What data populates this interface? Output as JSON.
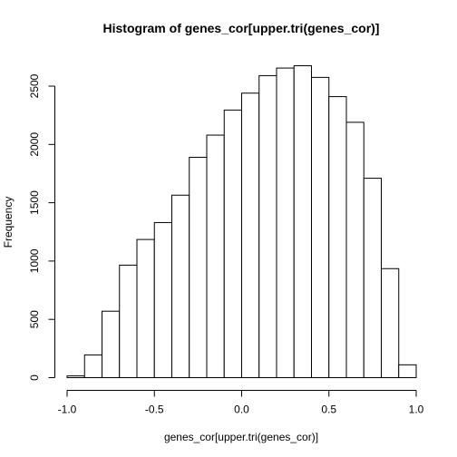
{
  "chart_data": {
    "type": "bar",
    "title": "Histogram of genes_cor[upper.tri(genes_cor)]",
    "xlabel": "genes_cor[upper.tri(genes_cor)]",
    "ylabel": "Frequency",
    "bin_width": 0.1,
    "bins": [
      {
        "start": -1.0,
        "end": -0.9,
        "count": 15
      },
      {
        "start": -0.9,
        "end": -0.8,
        "count": 195
      },
      {
        "start": -0.8,
        "end": -0.7,
        "count": 570
      },
      {
        "start": -0.7,
        "end": -0.6,
        "count": 965
      },
      {
        "start": -0.6,
        "end": -0.5,
        "count": 1185
      },
      {
        "start": -0.5,
        "end": -0.4,
        "count": 1330
      },
      {
        "start": -0.4,
        "end": -0.3,
        "count": 1565
      },
      {
        "start": -0.3,
        "end": -0.2,
        "count": 1890
      },
      {
        "start": -0.2,
        "end": -0.1,
        "count": 2080
      },
      {
        "start": -0.1,
        "end": 0.0,
        "count": 2295
      },
      {
        "start": 0.0,
        "end": 0.1,
        "count": 2440
      },
      {
        "start": 0.1,
        "end": 0.2,
        "count": 2590
      },
      {
        "start": 0.2,
        "end": 0.3,
        "count": 2655
      },
      {
        "start": 0.3,
        "end": 0.4,
        "count": 2675
      },
      {
        "start": 0.4,
        "end": 0.5,
        "count": 2575
      },
      {
        "start": 0.5,
        "end": 0.6,
        "count": 2410
      },
      {
        "start": 0.6,
        "end": 0.7,
        "count": 2190
      },
      {
        "start": 0.7,
        "end": 0.8,
        "count": 1710
      },
      {
        "start": 0.8,
        "end": 0.9,
        "count": 935
      },
      {
        "start": 0.9,
        "end": 1.0,
        "count": 110
      }
    ],
    "xlim": [
      -1.0,
      1.0
    ],
    "ylim": [
      0,
      2675
    ],
    "x_ticks": [
      -1.0,
      -0.5,
      0.0,
      0.5,
      1.0
    ],
    "x_tick_labels": [
      "-1.0",
      "-0.5",
      "0.0",
      "0.5",
      "1.0"
    ],
    "y_ticks": [
      0,
      500,
      1000,
      1500,
      2000,
      2500
    ],
    "y_tick_labels": [
      "0",
      "500",
      "1000",
      "1500",
      "2000",
      "2500"
    ],
    "grid": false,
    "legend": "none"
  }
}
